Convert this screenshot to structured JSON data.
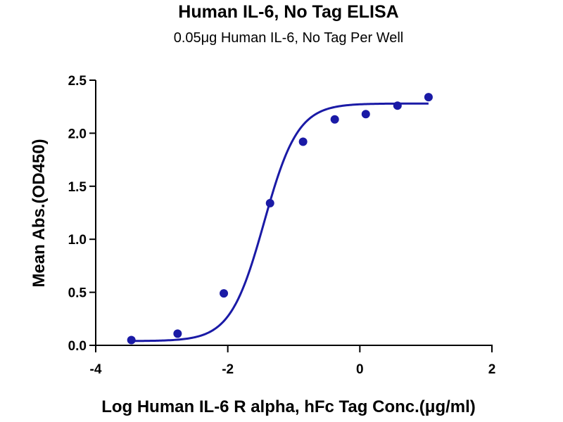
{
  "chart_data": {
    "type": "scatter",
    "title": "Human IL-6, No Tag ELISA",
    "subtitle": "0.05μg Human IL-6, No Tag Per Well",
    "xlabel": "Log Human IL-6 R alpha, hFc Tag Conc.(μg/ml)",
    "ylabel": "Mean Abs.(OD450)",
    "xlim": [
      -4,
      2
    ],
    "ylim": [
      0,
      2.5
    ],
    "x_ticks": [
      "-4",
      "-2",
      "0",
      "2"
    ],
    "x_tick_values": [
      -4,
      -2,
      0,
      2
    ],
    "y_ticks": [
      "0.0",
      "0.5",
      "1.0",
      "1.5",
      "2.0",
      "2.5"
    ],
    "y_tick_values": [
      0,
      0.5,
      1.0,
      1.5,
      2.0,
      2.5
    ],
    "grid": false,
    "series": [
      {
        "x": [
          -3.46,
          -2.76,
          -2.06,
          -1.36,
          -0.86,
          -0.38,
          0.09,
          0.57,
          1.04
        ],
        "y": [
          0.05,
          0.11,
          0.49,
          1.34,
          1.92,
          2.13,
          2.18,
          2.26,
          2.34
        ],
        "color": "#1a1aa6",
        "fit_curve": {
          "model": "4PL",
          "bottom": 0.04,
          "top": 2.28,
          "log_ec50": -1.45,
          "hill_slope": 1.7,
          "x_range": [
            -3.46,
            1.04
          ]
        }
      }
    ]
  }
}
